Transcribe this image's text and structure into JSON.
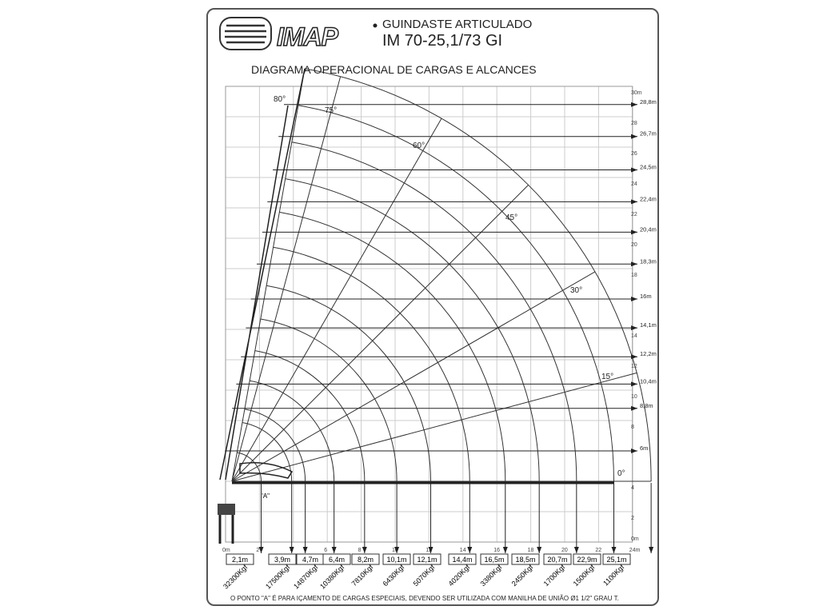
{
  "header": {
    "brand": "IMAP",
    "title": "GUINDASTE ARTICULADO",
    "model": "IM 70-25,1/73 GI",
    "subtitle": "DIAGRAMA OPERACIONAL DE CARGAS E ALCANCES"
  },
  "chart_data": {
    "type": "load-reach diagram",
    "x_axis": {
      "unit": "m",
      "ticks": [
        "0m",
        "2",
        "4",
        "6",
        "8",
        "10",
        "12",
        "14",
        "16",
        "18",
        "20",
        "22",
        "24m"
      ],
      "range": [
        0,
        24
      ]
    },
    "y_axis": {
      "unit": "m",
      "ticks": [
        "0m",
        "2",
        "4",
        "8",
        "10",
        "12",
        "14",
        "18",
        "20",
        "22",
        "24",
        "26",
        "28",
        "30m"
      ],
      "range": [
        0,
        30
      ]
    },
    "boom_angles": [
      "0°",
      "15°",
      "30°",
      "45°",
      "60°",
      "75°",
      "80°"
    ],
    "heights": [
      {
        "label": "28,8m",
        "value": 28.8
      },
      {
        "label": "26,7m",
        "value": 26.7
      },
      {
        "label": "24,5m",
        "value": 24.5
      },
      {
        "label": "22,4m",
        "value": 22.4
      },
      {
        "label": "20,4m",
        "value": 20.4
      },
      {
        "label": "18,3m",
        "value": 18.3
      },
      {
        "label": "16m",
        "value": 16
      },
      {
        "label": "14,1m",
        "value": 14.1
      },
      {
        "label": "12,2m",
        "value": 12.2
      },
      {
        "label": "10,4m",
        "value": 10.4
      },
      {
        "label": "8,8m",
        "value": 8.8
      },
      {
        "label": "6m",
        "value": 6
      }
    ],
    "reach_loads": [
      {
        "reach": "2,1m",
        "reach_m": 2.1,
        "load": "32300Kgf"
      },
      {
        "reach": "3,9m",
        "reach_m": 3.9,
        "load": "17500Kgf"
      },
      {
        "reach": "4,7m",
        "reach_m": 4.7,
        "load": "14870Kgf"
      },
      {
        "reach": "6,4m",
        "reach_m": 6.4,
        "load": "10380Kgf"
      },
      {
        "reach": "8,2m",
        "reach_m": 8.2,
        "load": "7810Kgf"
      },
      {
        "reach": "10,1m",
        "reach_m": 10.1,
        "load": "6430Kgf"
      },
      {
        "reach": "12,1m",
        "reach_m": 12.1,
        "load": "5070Kgf"
      },
      {
        "reach": "14,4m",
        "reach_m": 14.4,
        "load": "4020Kgf"
      },
      {
        "reach": "16,5m",
        "reach_m": 16.5,
        "load": "3380Kgf"
      },
      {
        "reach": "18,5m",
        "reach_m": 18.5,
        "load": "2450Kgf"
      },
      {
        "reach": "20,7m",
        "reach_m": 20.7,
        "load": "1700Kgf"
      },
      {
        "reach": "22,9m",
        "reach_m": 22.9,
        "load": "1500Kgf"
      },
      {
        "reach": "25,1m",
        "reach_m": 25.1,
        "load": "1100Kgf"
      }
    ],
    "point_label": "\"A\"",
    "grid": true
  },
  "footer": {
    "note": "O PONTO \"A\" É PARA IÇAMENTO DE CARGAS ESPECIAIS, DEVENDO SER UTILIZADA COM MANILHA DE UNIÃO Ø1 1/2\" GRAU T."
  }
}
